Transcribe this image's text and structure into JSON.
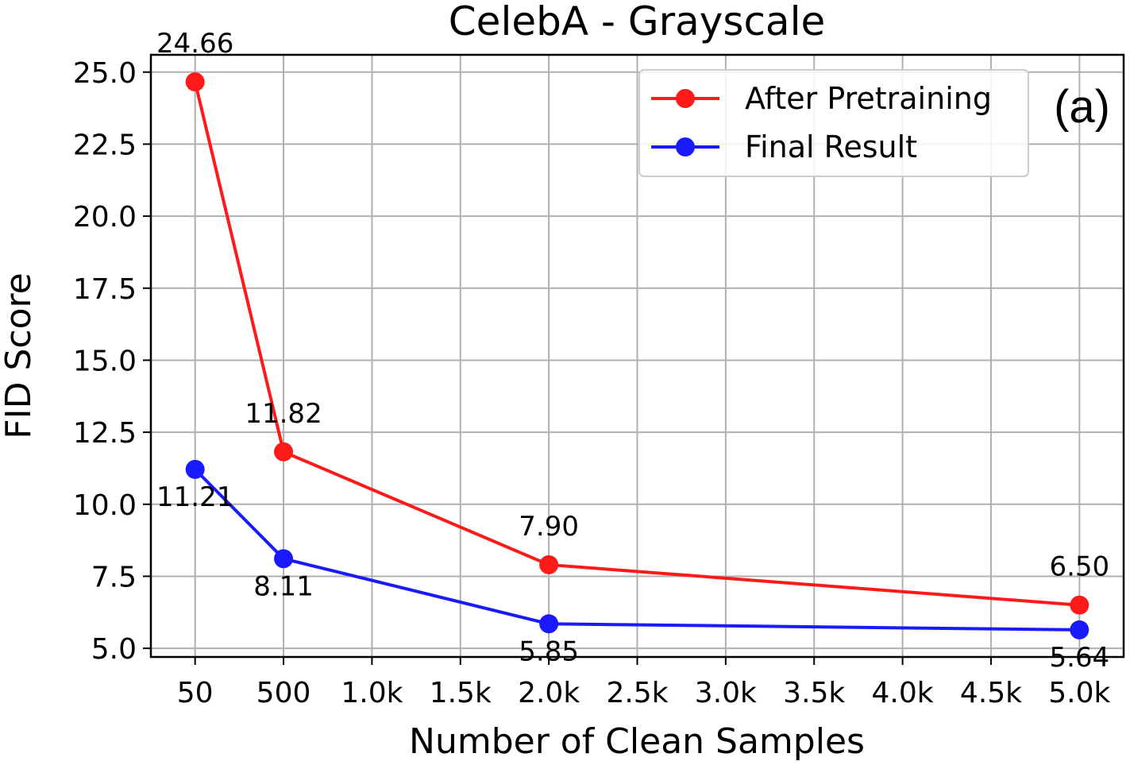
{
  "chart_data": {
    "type": "line",
    "title": "CelebA - Grayscale",
    "xlabel": "Number of Clean Samples",
    "ylabel": "FID Score",
    "panel_tag": "(a)",
    "grid": true,
    "legend_position": "top-right",
    "xlim": [
      -250,
      5250
    ],
    "ylim": [
      4.7,
      25.6
    ],
    "x_ticks": [
      {
        "value": 0,
        "label": "50"
      },
      {
        "value": 500,
        "label": "500"
      },
      {
        "value": 1000,
        "label": "1.0k"
      },
      {
        "value": 1500,
        "label": "1.5k"
      },
      {
        "value": 2000,
        "label": "2.0k"
      },
      {
        "value": 2500,
        "label": "2.5k"
      },
      {
        "value": 3000,
        "label": "3.0k"
      },
      {
        "value": 3500,
        "label": "3.5k"
      },
      {
        "value": 4000,
        "label": "4.0k"
      },
      {
        "value": 4500,
        "label": "4.5k"
      },
      {
        "value": 5000,
        "label": "5.0k"
      }
    ],
    "y_ticks": [
      {
        "value": 5.0,
        "label": "5.0"
      },
      {
        "value": 7.5,
        "label": "7.5"
      },
      {
        "value": 10.0,
        "label": "10.0"
      },
      {
        "value": 12.5,
        "label": "12.5"
      },
      {
        "value": 15.0,
        "label": "15.0"
      },
      {
        "value": 17.5,
        "label": "17.5"
      },
      {
        "value": 20.0,
        "label": "20.0"
      },
      {
        "value": 22.5,
        "label": "22.5"
      },
      {
        "value": 25.0,
        "label": "25.0"
      }
    ],
    "x": [
      0,
      500,
      2000,
      5000
    ],
    "series": [
      {
        "name": "After Pretraining",
        "color": "#ff1a1a",
        "values": [
          24.66,
          11.82,
          7.9,
          6.5
        ],
        "labels": [
          "24.66",
          "11.82",
          "7.90",
          "6.50"
        ],
        "label_position": "above"
      },
      {
        "name": "Final Result",
        "color": "#1a1aff",
        "values": [
          11.21,
          8.11,
          5.85,
          5.64
        ],
        "labels": [
          "11.21",
          "8.11",
          "5.85",
          "5.64"
        ],
        "label_position": "below"
      }
    ]
  }
}
